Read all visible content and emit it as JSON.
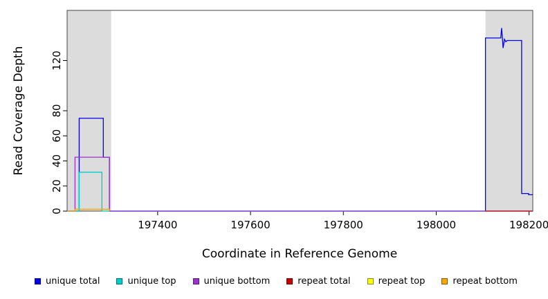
{
  "chart_data": {
    "type": "line",
    "title": "",
    "xlabel": "Coordinate in Reference Genome",
    "ylabel": "Read Coverage Depth",
    "xlim": [
      197205,
      198208
    ],
    "ylim": [
      0,
      160
    ],
    "xticks": [
      197400,
      197600,
      197800,
      198000,
      198200
    ],
    "yticks": [
      0,
      20,
      40,
      60,
      80,
      120
    ],
    "grid": false,
    "legend_position": "bottom",
    "plot_background": "#ffffff",
    "shaded_region_color": "#dcdcdc",
    "shaded_regions": [
      {
        "x0": 197205,
        "x1": 197300
      },
      {
        "x0": 198106,
        "x1": 198208
      }
    ],
    "series": [
      {
        "name": "unique total",
        "color": "#0000ee",
        "points": [
          [
            197205,
            0
          ],
          [
            197231,
            0
          ],
          [
            197231,
            74
          ],
          [
            197283,
            74
          ],
          [
            197283,
            43
          ],
          [
            197296,
            43
          ],
          [
            197296,
            0
          ],
          [
            198106,
            0
          ],
          [
            198106,
            138
          ],
          [
            198139,
            138
          ],
          [
            198141,
            146
          ],
          [
            198144,
            130
          ],
          [
            198147,
            137
          ],
          [
            198150,
            135
          ],
          [
            198153,
            136
          ],
          [
            198184,
            136
          ],
          [
            198184,
            14
          ],
          [
            198199,
            14
          ],
          [
            198199,
            13
          ],
          [
            198208,
            13
          ]
        ]
      },
      {
        "name": "unique top",
        "color": "#00cdcd",
        "points": [
          [
            197205,
            0
          ],
          [
            197231,
            0
          ],
          [
            197231,
            31
          ],
          [
            197280,
            31
          ],
          [
            197280,
            0
          ],
          [
            198208,
            0
          ]
        ]
      },
      {
        "name": "unique bottom",
        "color": "#9a32cd",
        "points": [
          [
            197205,
            0
          ],
          [
            197222,
            0
          ],
          [
            197222,
            43
          ],
          [
            197296,
            43
          ],
          [
            197296,
            0
          ],
          [
            198208,
            0
          ]
        ]
      },
      {
        "name": "repeat total",
        "color": "#cd0000",
        "points": [
          [
            198106,
            0
          ],
          [
            198208,
            0
          ]
        ]
      },
      {
        "name": "repeat top",
        "color": "#ffff00",
        "points": []
      },
      {
        "name": "repeat bottom",
        "color": "#ffa500",
        "points": [
          [
            197205,
            0
          ],
          [
            197222,
            0
          ],
          [
            197222,
            1.5
          ],
          [
            197296,
            1.5
          ],
          [
            197296,
            0
          ]
        ]
      }
    ]
  }
}
